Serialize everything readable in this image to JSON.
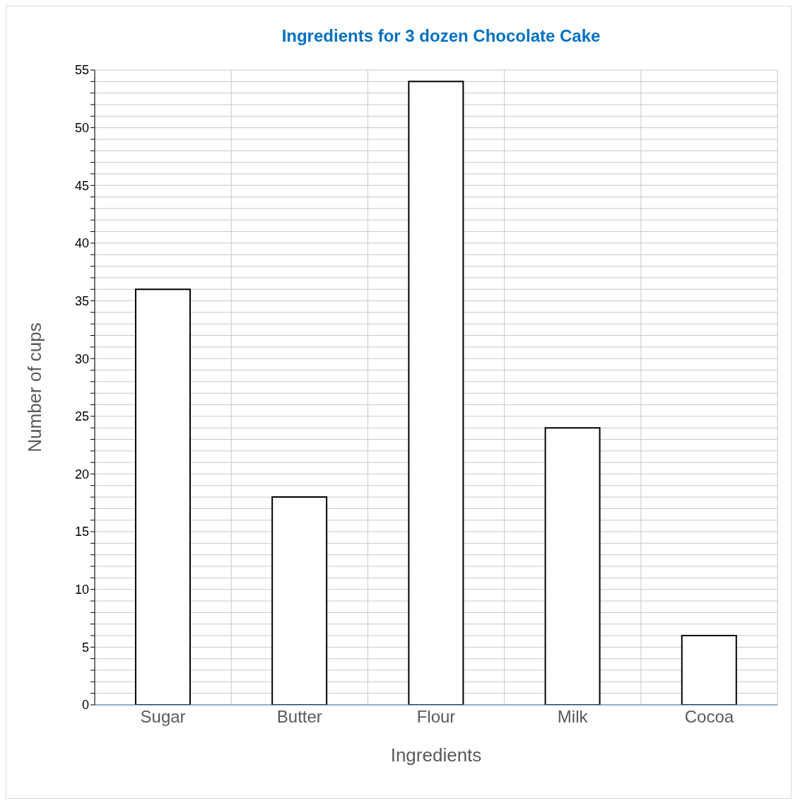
{
  "chart_data": {
    "type": "bar",
    "title": "Ingredients for 3 dozen Chocolate Cake",
    "xlabel": "Ingredients",
    "ylabel": "Number of cups",
    "categories": [
      "Sugar",
      "Butter",
      "Flour",
      "Milk",
      "Cocoa"
    ],
    "values": [
      36,
      18,
      54,
      24,
      6
    ],
    "color": "#ffffff",
    "ylim": [
      0,
      55
    ],
    "yticks": [
      0,
      {
        "value": 1,
        "label": null
      },
      {
        "value": 2,
        "label": null
      },
      {
        "value": 3,
        "label": null
      },
      {
        "value": 4,
        "label": null
      },
      5,
      {
        "value": 6,
        "label": null
      },
      {
        "value": 7,
        "label": null
      },
      {
        "value": 8,
        "label": null
      },
      {
        "value": 9,
        "label": null
      },
      10,
      {
        "value": 11,
        "label": null
      },
      {
        "value": 12,
        "label": null
      },
      {
        "value": 13,
        "label": null
      },
      {
        "value": 14,
        "label": null
      },
      15,
      {
        "value": 16,
        "label": null
      },
      {
        "value": 17,
        "label": null
      },
      {
        "value": 18,
        "label": null
      },
      {
        "value": 19,
        "label": null
      },
      20,
      {
        "value": 21,
        "label": null
      },
      {
        "value": 22,
        "label": null
      },
      {
        "value": 23,
        "label": null
      },
      {
        "value": 24,
        "label": null
      },
      25,
      {
        "value": 26,
        "label": null
      },
      {
        "value": 27,
        "label": null
      },
      {
        "value": 28,
        "label": null
      },
      {
        "value": 29,
        "label": null
      },
      30,
      {
        "value": 31,
        "label": null
      },
      {
        "value": 32,
        "label": null
      },
      {
        "value": 33,
        "label": null
      },
      {
        "value": 34,
        "label": null
      },
      35,
      {
        "value": 36,
        "label": null
      },
      {
        "value": 37,
        "label": null
      },
      {
        "value": 38,
        "label": null
      },
      {
        "value": 39,
        "label": null
      },
      40,
      {
        "value": 41,
        "label": null
      },
      {
        "value": 42,
        "label": null
      },
      {
        "value": 43,
        "label": null
      },
      {
        "value": 44,
        "label": null
      },
      45,
      {
        "value": 46,
        "label": null
      },
      {
        "value": 47,
        "label": null
      },
      {
        "value": 48,
        "label": null
      },
      {
        "value": 49,
        "label": null
      },
      50,
      {
        "value": 51,
        "label": null
      },
      {
        "value": 52,
        "label": null
      },
      {
        "value": 53,
        "label": null
      },
      {
        "value": 54,
        "label": null
      },
      55
    ],
    "grid": true
  }
}
